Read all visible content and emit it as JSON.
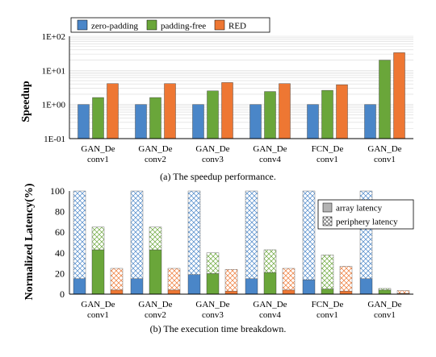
{
  "colors": {
    "zero_padding": "#4a86c8",
    "padding_free": "#6aa63a",
    "red": "#ee7733",
    "array_latency": "#b3b3b3",
    "grid": "#d9d9d9",
    "axis": "#000000"
  },
  "chart_data": [
    {
      "type": "bar",
      "caption": "(a) The speedup performance.",
      "ylabel": "Speedup",
      "yscale": "log",
      "ylim": [
        0.1,
        100
      ],
      "yticks": [
        "1E-01",
        "1E+00",
        "1E+01",
        "1E+02"
      ],
      "grid": true,
      "legend_position": "top",
      "categories": [
        [
          "GAN_De",
          "conv1"
        ],
        [
          "GAN_De",
          "conv2"
        ],
        [
          "GAN_De",
          "conv3"
        ],
        [
          "GAN_De",
          "conv4"
        ],
        [
          "FCN_De",
          "conv1"
        ],
        [
          "GAN_De",
          "conv1"
        ]
      ],
      "series": [
        {
          "name": "zero-padding",
          "color": "#4a86c8",
          "values": [
            1,
            1,
            1,
            1,
            1,
            1
          ]
        },
        {
          "name": "padding-free",
          "color": "#6aa63a",
          "values": [
            1.6,
            1.6,
            2.5,
            2.4,
            2.6,
            20
          ]
        },
        {
          "name": "RED",
          "color": "#ee7733",
          "values": [
            4.1,
            4.1,
            4.4,
            4.1,
            3.8,
            33
          ]
        }
      ]
    },
    {
      "type": "bar",
      "stacked": true,
      "caption": "(b) The execution time breakdown.",
      "ylabel": "Normalized Latency(%)",
      "ylim": [
        0,
        100
      ],
      "yticks": [
        "0",
        "20",
        "40",
        "60",
        "80",
        "100"
      ],
      "legend_position": "top-right",
      "categories": [
        [
          "GAN_De",
          "conv1"
        ],
        [
          "GAN_De",
          "conv2"
        ],
        [
          "GAN_De",
          "conv3"
        ],
        [
          "GAN_De",
          "conv4"
        ],
        [
          "FCN_De",
          "conv1"
        ],
        [
          "GAN_De",
          "conv1"
        ]
      ],
      "legend": [
        "array latency",
        "periphery latency"
      ],
      "groups": [
        {
          "method": "zero-padding",
          "color": "#4a86c8",
          "array_latency": [
            15,
            15,
            19,
            15,
            14,
            15
          ],
          "periphery_latency": [
            85,
            85,
            81,
            85,
            86,
            85
          ]
        },
        {
          "method": "padding-free",
          "color": "#6aa63a",
          "array_latency": [
            43,
            43,
            20,
            21,
            5,
            4
          ],
          "periphery_latency": [
            22,
            22,
            20,
            22,
            33,
            1.5
          ]
        },
        {
          "method": "RED",
          "color": "#ee7733",
          "array_latency": [
            4,
            4,
            3,
            4,
            3,
            0.8
          ],
          "periphery_latency": [
            21,
            21,
            21,
            21,
            24,
            2.7
          ]
        }
      ]
    }
  ]
}
